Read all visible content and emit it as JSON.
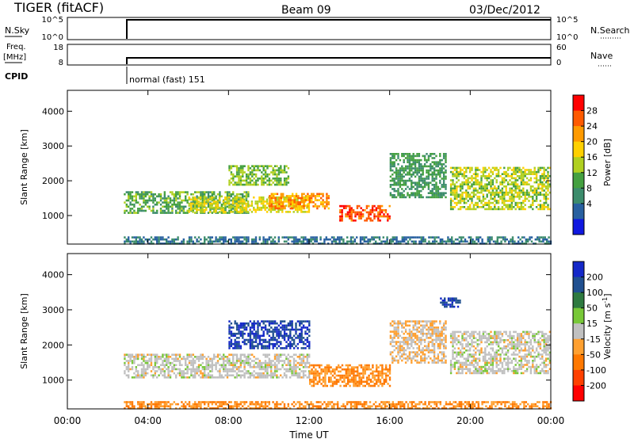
{
  "header": {
    "radar": "TIGER (fitACF)",
    "beam": "Beam 09",
    "date": "03/Dec/2012"
  },
  "nsky_panel": {
    "left_label": "N.Sky",
    "left_ticks": [
      "10^5",
      "10^0"
    ],
    "right_label": "N.Search",
    "right_ticks": [
      "10^5",
      "10^0"
    ]
  },
  "freq_panel": {
    "left_label_1": "Freq.",
    "left_label_2": "[MHz]",
    "left_ticks": [
      "18",
      "8"
    ],
    "right_label": "Nave",
    "right_ticks": [
      "60",
      "0"
    ]
  },
  "cpid": {
    "label": "CPID",
    "value": "normal (fast) 151"
  },
  "colorbars": {
    "power": {
      "label": "Power [dB]",
      "ticks": [
        "28",
        "24",
        "20",
        "16",
        "12",
        "8",
        "4"
      ],
      "colors": [
        "#ff0000",
        "#ff5a00",
        "#ff9a00",
        "#ffd000",
        "#b0d020",
        "#44a040",
        "#3c8c6c",
        "#2860a0",
        "#1018e0"
      ]
    },
    "velocity": {
      "label": "Velocity [m s",
      "label_sup": "-1",
      "label_end": "]",
      "ticks": [
        "200",
        "100",
        "50",
        "15",
        "-15",
        "-50",
        "-100",
        "-200"
      ],
      "colors": [
        "#1428c8",
        "#205090",
        "#2e7a40",
        "#78c838",
        "#c0c0c0",
        "#ffa030",
        "#ff7800",
        "#ff4000",
        "#ff0000"
      ]
    }
  },
  "chart_data": [
    {
      "type": "heatmap",
      "name": "Power",
      "ylabel": "Slant Range [km]",
      "ylim": [
        180,
        4600
      ],
      "yticks": [
        "4000",
        "3000",
        "2000",
        "1000"
      ],
      "xlim": [
        0,
        24
      ],
      "units": "dB",
      "regions": [
        {
          "t0": 2.8,
          "t1": 9.0,
          "r0": 1050,
          "r1": 1700,
          "value": 12
        },
        {
          "t0": 6.0,
          "t1": 12.0,
          "r0": 1100,
          "r1": 1550,
          "value": 18
        },
        {
          "t0": 10.0,
          "t1": 13.0,
          "r0": 1200,
          "r1": 1650,
          "value": 24
        },
        {
          "t0": 13.5,
          "t1": 16.0,
          "r0": 850,
          "r1": 1300,
          "value": 28
        },
        {
          "t0": 8.0,
          "t1": 11.0,
          "r0": 1900,
          "r1": 2450,
          "value": 14
        },
        {
          "t0": 16.0,
          "t1": 18.8,
          "r0": 1500,
          "r1": 2800,
          "value": 10
        },
        {
          "t0": 19.0,
          "t1": 24.0,
          "r0": 1200,
          "r1": 2400,
          "value": 16
        },
        {
          "t0": 2.8,
          "t1": 24.0,
          "r0": 180,
          "r1": 400,
          "value": 6
        }
      ]
    },
    {
      "type": "heatmap",
      "name": "Velocity",
      "ylabel": "Slant Range [km]",
      "ylim": [
        180,
        4600
      ],
      "yticks": [
        "4000",
        "3000",
        "2000",
        "1000"
      ],
      "xlim": [
        0,
        24
      ],
      "xlabel": "Time UT",
      "xticks": [
        "00:00",
        "04:00",
        "08:00",
        "12:00",
        "16:00",
        "20:00",
        "00:00"
      ],
      "units": "m s-1",
      "regions": [
        {
          "t0": 2.8,
          "t1": 12.0,
          "r0": 1050,
          "r1": 1750,
          "value": 0
        },
        {
          "t0": 12.0,
          "t1": 16.0,
          "r0": 850,
          "r1": 1450,
          "value": -50
        },
        {
          "t0": 8.0,
          "t1": 12.0,
          "r0": 1900,
          "r1": 2700,
          "value": 200
        },
        {
          "t0": 18.5,
          "t1": 19.5,
          "r0": 3100,
          "r1": 3350,
          "value": 200
        },
        {
          "t0": 16.0,
          "t1": 18.8,
          "r0": 1500,
          "r1": 2700,
          "value": -15
        },
        {
          "t0": 19.0,
          "t1": 24.0,
          "r0": 1200,
          "r1": 2400,
          "value": 0
        },
        {
          "t0": 2.8,
          "t1": 24.0,
          "r0": 180,
          "r1": 400,
          "value": -50
        }
      ]
    }
  ]
}
